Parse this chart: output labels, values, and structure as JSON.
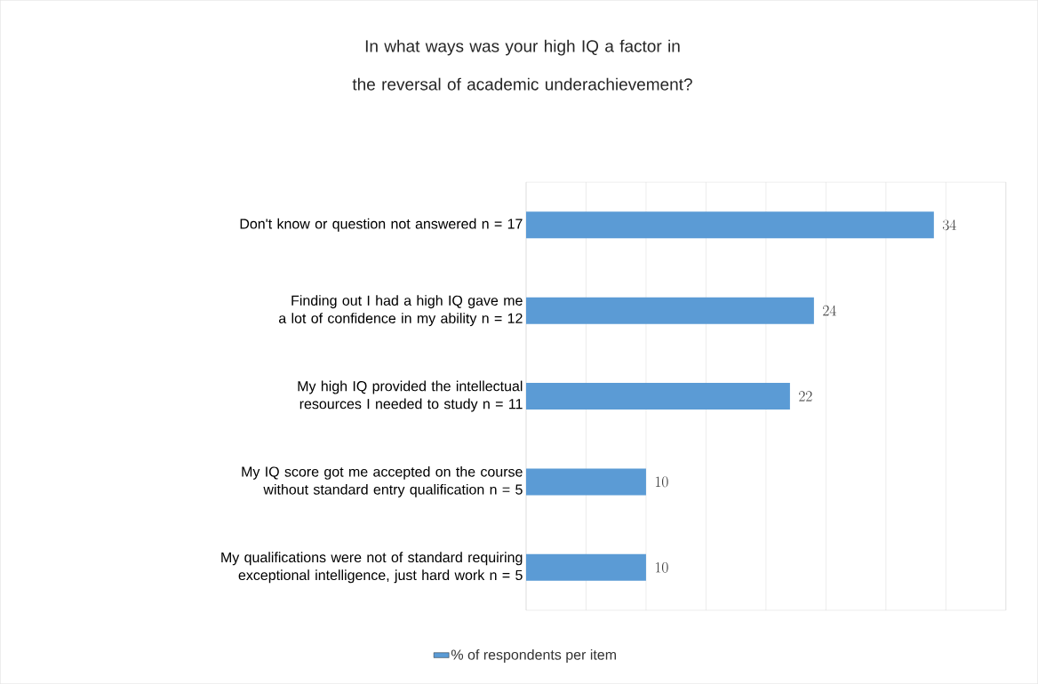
{
  "chart_data": {
    "type": "bar",
    "orientation": "horizontal",
    "title": "In what ways was your high IQ a factor in the reversal of academic underachievement?",
    "categories": [
      "Don't know or question not answered n = 17",
      "Finding out I had a high IQ gave me a lot of confidence in my ability  n = 12",
      "My high IQ provided the intellectual resources I needed to study  n = 11",
      "My IQ score got me accepted on the course without standard entry qualification  n = 5",
      "My qualifications were not of standard  requiring exceptional intelligence, just hard work n = 5"
    ],
    "series": [
      {
        "name": "% of respondents per item",
        "color": "#5b9bd5",
        "values": [
          34,
          24,
          22,
          10,
          10
        ]
      }
    ],
    "xlim": [
      0,
      40
    ],
    "xticks": [
      {
        "value": 0,
        "label": null
      },
      {
        "value": 5,
        "label": null
      },
      {
        "value": 10,
        "label": null
      },
      {
        "value": 15,
        "label": null
      },
      {
        "value": 20,
        "label": null
      },
      {
        "value": 25,
        "label": null
      },
      {
        "value": 30,
        "label": null
      },
      {
        "value": 35,
        "label": null
      },
      {
        "value": 40,
        "label": null
      }
    ],
    "tick_labels": "y",
    "grid": "x",
    "legend": "bottom",
    "data_labels": true
  }
}
